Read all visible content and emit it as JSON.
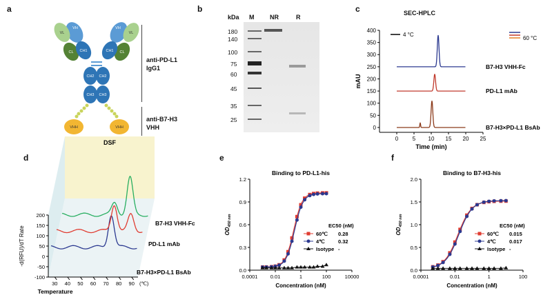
{
  "panel_a": {
    "letter": "a",
    "domain_labels": {
      "vl": "VL",
      "vh": "VH",
      "cl": "CL",
      "ch1": "CH1",
      "ch2": "CH2",
      "ch3": "CH3",
      "vhh": "VHH"
    },
    "bracket_top": [
      "anti-PD-L1",
      "IgG1"
    ],
    "bracket_bottom": [
      "anti-B7-H3",
      "VHH"
    ],
    "colors": {
      "vl": "#a9d18e",
      "vh": "#5b9bd5",
      "cl": "#548235",
      "ch": "#2e75b6",
      "vhh": "#f2b632",
      "linker": "#c9d45c"
    }
  },
  "panel_b": {
    "letter": "b",
    "unit": "kDa",
    "lane_labels": [
      "M",
      "NR",
      "R"
    ],
    "markers": [
      "180",
      "140",
      "100",
      "75",
      "60",
      "45",
      "35",
      "25"
    ]
  },
  "panel_c": {
    "letter": "c",
    "title": "SEC-HPLC",
    "legend_4c": "4 °C",
    "legend_60c": "60 °C",
    "ylabel": "mAU",
    "xlabel": "Time (min)",
    "trace_labels": [
      "B7-H3 VHH-Fc",
      "PD-L1 mAb",
      "B7-H3×PD-L1 BsAb"
    ]
  },
  "panel_d": {
    "letter": "d",
    "title": "DSF",
    "ylabel": "-d(RFU)/dT Rate",
    "xlabel": "Temperature",
    "unit": "(℃)",
    "trace_labels": [
      "B7-H3 VHH-Fc",
      "PD-L1 mAb",
      "B7-H3×PD-L1 BsAb"
    ]
  },
  "panel_e": {
    "letter": "e",
    "legend_header": "EC50 (nM)",
    "ylabel_sub": "450 nm",
    "legend_rows": [
      {
        "label": "60℃",
        "value": "0.28"
      },
      {
        "label": "4℃",
        "value": "0.32"
      },
      {
        "label": "Isotype",
        "value": "-"
      }
    ]
  },
  "panel_f": {
    "letter": "f",
    "legend_header": "EC50 (nM)",
    "ylabel_sub": "450 nm",
    "legend_rows": [
      {
        "label": "60℃",
        "value": "0.015"
      },
      {
        "label": "4℃",
        "value": "0.017"
      },
      {
        "label": "Isotype",
        "value": "-"
      }
    ]
  },
  "chart_data": [
    {
      "type": "line",
      "title": "SEC-HPLC",
      "xlabel": "Time (min)",
      "ylabel": "mAU",
      "xlim": [
        -5,
        25
      ],
      "ylim": [
        -20,
        400
      ],
      "xticks": [
        "0",
        "5",
        "10",
        "15",
        "20",
        "25"
      ],
      "yticks": [
        "0",
        "50",
        "100",
        "150",
        "200",
        "250",
        "300",
        "350",
        "400"
      ],
      "series": [
        {
          "name": "B7-H3 VHH-Fc",
          "baseline": 250,
          "peak_x": 12.0,
          "peak_height": 130,
          "color": "#2b3990"
        },
        {
          "name": "PD-L1 mAb",
          "baseline": 150,
          "peak_x": 11.0,
          "peak_height": 70,
          "color": "#c0392b"
        },
        {
          "name": "B7-H3×PD-L1 BsAb",
          "baseline": 0,
          "peak_x": 10.2,
          "peak_height": 110,
          "color": "#8b3a1a"
        }
      ]
    },
    {
      "type": "line",
      "title": "DSF",
      "xlabel": "Temperature",
      "ylabel": "-d(RFU)/dT Rate",
      "xlim": [
        25,
        95
      ],
      "ylim": [
        -100,
        200
      ],
      "xticks": [
        "30",
        "40",
        "50",
        "60",
        "70",
        "80",
        "90"
      ],
      "yticks": [
        "-100",
        "-50",
        "0",
        "50",
        "100",
        "150",
        "200"
      ],
      "series": [
        {
          "name": "B7-H3 VHH-Fc",
          "color": "#27ae60",
          "peaks": [
            [
              66,
              60
            ],
            [
              78,
              180
            ]
          ]
        },
        {
          "name": "PD-L1 mAb",
          "color": "#e03c31",
          "peaks": [
            [
              70,
              130
            ],
            [
              83,
              80
            ]
          ]
        },
        {
          "name": "B7-H3×PD-L1 BsAb",
          "color": "#2b3990",
          "peaks": [
            [
              72,
              160
            ]
          ]
        }
      ]
    },
    {
      "type": "line",
      "title": "Binding to PD-L1-his",
      "xlabel": "Concentration (nM)",
      "ylabel": "OD450 nm",
      "xscale": "log",
      "xlim": [
        0.0001,
        10000
      ],
      "ylim": [
        0,
        1.2
      ],
      "xticks": [
        "0.0001",
        "0.01",
        "1",
        "100",
        "10000"
      ],
      "yticks": [
        "0.0",
        "0.3",
        "0.6",
        "0.9",
        "1.2"
      ],
      "x": [
        0.001,
        0.002,
        0.005,
        0.01,
        0.02,
        0.05,
        0.1,
        0.2,
        0.5,
        1,
        2,
        5,
        10,
        20,
        50,
        100
      ],
      "series": [
        {
          "name": "60℃",
          "ec50": 0.28,
          "top": 1.02,
          "bottom": 0.04,
          "hill": 1.3,
          "color": "#e03c31",
          "marker": "square"
        },
        {
          "name": "4℃",
          "ec50": 0.32,
          "top": 1.01,
          "bottom": 0.04,
          "hill": 1.3,
          "color": "#2b3990",
          "marker": "circle"
        },
        {
          "name": "Isotype",
          "values": [
            0.03,
            0.03,
            0.03,
            0.03,
            0.03,
            0.03,
            0.03,
            0.03,
            0.04,
            0.04,
            0.04,
            0.04,
            0.04,
            0.05,
            0.05,
            0.07
          ],
          "color": "#111111",
          "marker": "triangle"
        }
      ]
    },
    {
      "type": "line",
      "title": "Binding to B7-H3-his",
      "xlabel": "Concentration (nM)",
      "ylabel": "OD450 nm",
      "xscale": "log",
      "xlim": [
        0.0001,
        100
      ],
      "ylim": [
        0,
        2.0
      ],
      "xticks": [
        "0.0001",
        "0.01",
        "1",
        "100"
      ],
      "yticks": [
        "0.0",
        "0.5",
        "1.0",
        "1.5",
        "2.0"
      ],
      "x": [
        0.0005,
        0.001,
        0.002,
        0.005,
        0.01,
        0.02,
        0.05,
        0.1,
        0.2,
        0.5,
        1,
        2,
        5,
        10
      ],
      "series": [
        {
          "name": "60℃",
          "ec50": 0.015,
          "top": 1.52,
          "bottom": 0.04,
          "hill": 1.1,
          "color": "#e03c31",
          "marker": "square"
        },
        {
          "name": "4℃",
          "ec50": 0.017,
          "top": 1.53,
          "bottom": 0.04,
          "hill": 1.1,
          "color": "#2b3990",
          "marker": "circle"
        },
        {
          "name": "Isotype",
          "values": [
            0.04,
            0.04,
            0.04,
            0.04,
            0.04,
            0.04,
            0.04,
            0.04,
            0.04,
            0.04,
            0.04,
            0.04,
            0.04,
            0.05
          ],
          "color": "#111111",
          "marker": "triangle"
        }
      ]
    }
  ]
}
